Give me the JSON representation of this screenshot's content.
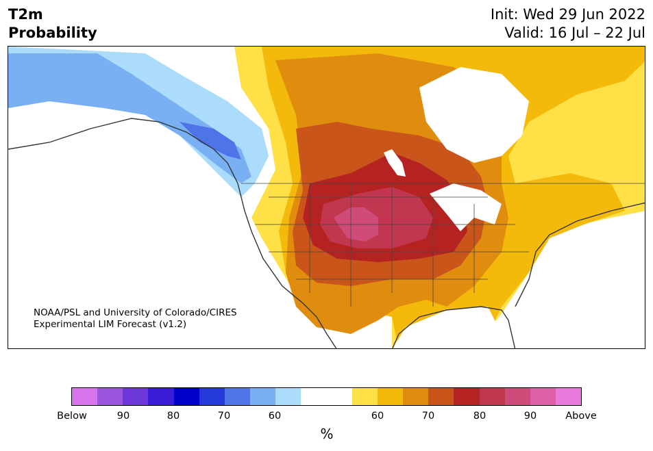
{
  "header": {
    "title_line1": "T2m",
    "title_line2": "Probability",
    "init": "Init: Wed 29 Jun 2022",
    "valid": "Valid: 16 Jul – 22 Jul"
  },
  "credit": {
    "line1": "NOAA/PSL and University of Colorado/CIRES",
    "line2": "Experimental LIM Forecast (v1.2)"
  },
  "colorbar": {
    "colors": [
      "#d875eb",
      "#9b56e0",
      "#6c38d9",
      "#3a1dd6",
      "#0000cd",
      "#2538d9",
      "#4f74e8",
      "#78b0f3",
      "#acdcfb",
      "#ffffff",
      "#ffffff",
      "#ffe046",
      "#f3b90b",
      "#e08c0e",
      "#c9551a",
      "#b52222",
      "#c1374f",
      "#cf4b79",
      "#dd5fa8",
      "#e979dc"
    ],
    "tick_labels": [
      "Below",
      "90",
      "80",
      "70",
      "60",
      "60",
      "70",
      "80",
      "90",
      "Above"
    ],
    "unit": "%"
  },
  "map_colors": {
    "land_neutral": "#ffffff",
    "water": "#ffffff",
    "below_60": "#acdcfb",
    "below_70": "#78b0f3",
    "below_80": "#4f74e8",
    "above_60": "#ffe046",
    "above_70": "#f3b90b",
    "above_80": "#e08c0e",
    "above_85": "#c9551a",
    "above_90": "#b52222",
    "above_95": "#c1374f",
    "above_99": "#cf4b79"
  }
}
